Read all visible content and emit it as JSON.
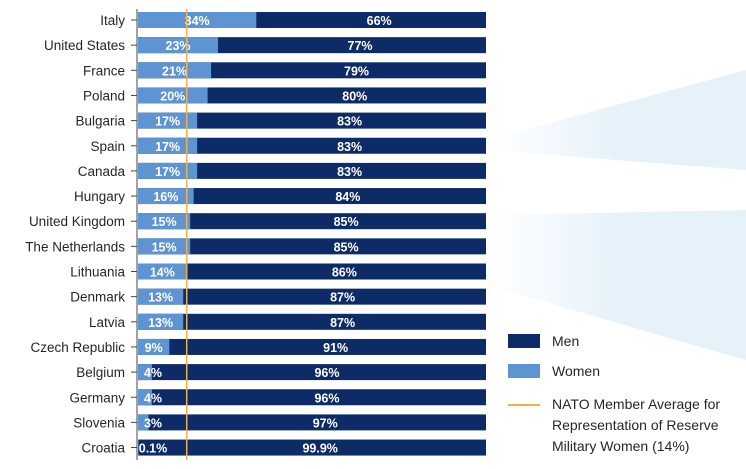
{
  "chart_data": {
    "type": "bar",
    "orientation": "horizontal",
    "stacked": true,
    "categories": [
      "Italy",
      "United States",
      "France",
      "Poland",
      "Bulgaria",
      "Spain",
      "Canada",
      "Hungary",
      "United Kingdom",
      "The Netherlands",
      "Lithuania",
      "Denmark",
      "Latvia",
      "Czech Republic",
      "Belgium",
      "Germany",
      "Slovenia",
      "Croatia"
    ],
    "series": [
      {
        "name": "Women",
        "color": "#5f94d2",
        "values": [
          34,
          23,
          21,
          20,
          17,
          17,
          17,
          16,
          15,
          15,
          14,
          13,
          13,
          9,
          4,
          4,
          3,
          0.1
        ],
        "labels": [
          "34%",
          "23%",
          "21%",
          "20%",
          "17%",
          "17%",
          "17%",
          "16%",
          "15%",
          "15%",
          "14%",
          "13%",
          "13%",
          "9%",
          "4%",
          "4%",
          "3%",
          "0.1%"
        ]
      },
      {
        "name": "Men",
        "color": "#0d2b66",
        "values": [
          66,
          77,
          79,
          80,
          83,
          83,
          83,
          84,
          85,
          85,
          86,
          87,
          87,
          91,
          96,
          96,
          97,
          99.9
        ],
        "labels": [
          "66%",
          "77%",
          "79%",
          "80%",
          "83%",
          "83%",
          "83%",
          "84%",
          "85%",
          "85%",
          "86%",
          "87%",
          "87%",
          "91%",
          "96%",
          "96%",
          "97%",
          "99.9%"
        ]
      }
    ],
    "reference_line": {
      "value": 14,
      "color": "#f2b14c"
    },
    "xlim": [
      0,
      100
    ],
    "legend": {
      "position": "bottom-right",
      "items": [
        {
          "name": "Men",
          "color": "#0d2b66"
        },
        {
          "name": "Women",
          "color": "#5f94d2"
        }
      ],
      "reference_lines": [
        "NATO Member Average for",
        "Representation of Reserve",
        "Military Women (14%)"
      ]
    }
  }
}
